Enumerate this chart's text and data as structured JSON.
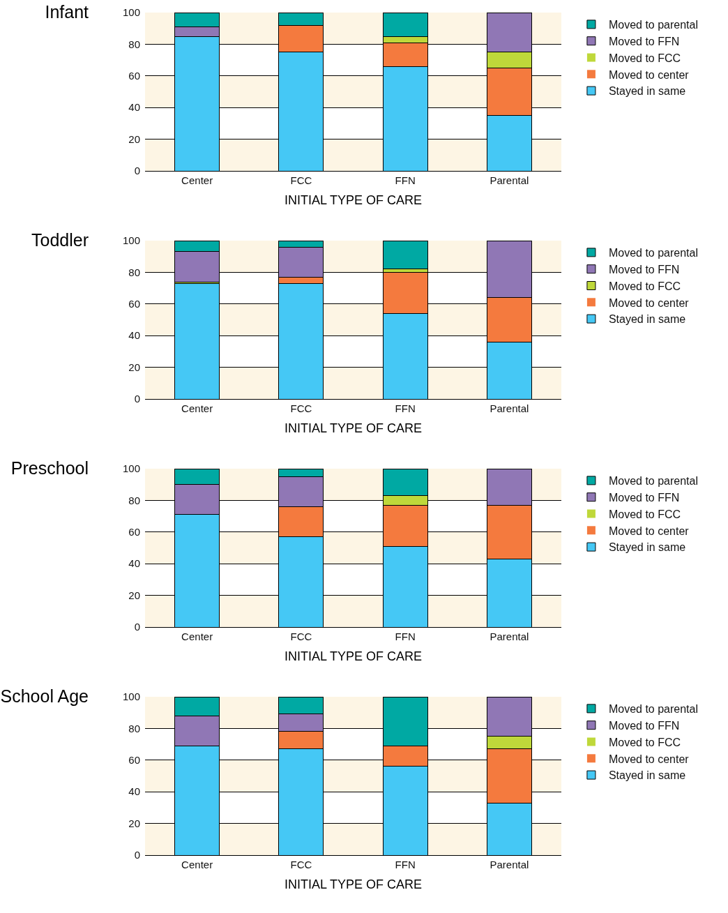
{
  "chart_data": [
    {
      "type": "bar",
      "title": "Infant",
      "xlabel": "INITIAL TYPE OF CARE",
      "categories": [
        "Center",
        "FCC",
        "FFN",
        "Parental"
      ],
      "stacked": true,
      "ylim": [
        0,
        100
      ],
      "yticks": [
        0,
        20,
        40,
        60,
        80,
        100
      ],
      "grid": "y",
      "legend": "right",
      "series": [
        {
          "name": "Stayed in same",
          "color": "#45c8f5",
          "values": [
            85,
            75,
            66,
            35
          ]
        },
        {
          "name": "Moved to center",
          "color": "#f47a3e",
          "values": [
            0,
            17,
            15,
            30
          ]
        },
        {
          "name": "Moved to FCC",
          "color": "#bfd83a",
          "values": [
            0,
            0,
            4,
            10
          ]
        },
        {
          "name": "Moved to FFN",
          "color": "#9077b5",
          "values": [
            6,
            0,
            0,
            25
          ]
        },
        {
          "name": "Moved to parental",
          "color": "#00a9a3",
          "values": [
            9,
            8,
            15,
            0
          ]
        }
      ]
    },
    {
      "type": "bar",
      "title": "Toddler",
      "xlabel": "INITIAL TYPE OF CARE",
      "categories": [
        "Center",
        "FCC",
        "FFN",
        "Parental"
      ],
      "stacked": true,
      "ylim": [
        0,
        100
      ],
      "yticks": [
        0,
        20,
        40,
        60,
        80,
        100
      ],
      "grid": "y",
      "legend": "right",
      "series": [
        {
          "name": "Stayed in same",
          "color": "#45c8f5",
          "values": [
            73,
            73,
            54,
            36
          ]
        },
        {
          "name": "Moved to center",
          "color": "#f47a3e",
          "values": [
            0,
            4,
            26,
            28
          ]
        },
        {
          "name": "Moved to FCC",
          "color": "#bfd83a",
          "values": [
            1,
            0,
            2,
            0
          ]
        },
        {
          "name": "Moved to FFN",
          "color": "#9077b5",
          "values": [
            19,
            19,
            0,
            36
          ]
        },
        {
          "name": "Moved to parental",
          "color": "#00a9a3",
          "values": [
            7,
            4,
            18,
            0
          ]
        }
      ]
    },
    {
      "type": "bar",
      "title": "Preschool",
      "xlabel": "INITIAL TYPE OF CARE",
      "categories": [
        "Center",
        "FCC",
        "FFN",
        "Parental"
      ],
      "stacked": true,
      "ylim": [
        0,
        100
      ],
      "yticks": [
        0,
        20,
        40,
        60,
        80,
        100
      ],
      "grid": "y",
      "legend": "right",
      "series": [
        {
          "name": "Stayed in same",
          "color": "#45c8f5",
          "values": [
            71,
            57,
            51,
            43
          ]
        },
        {
          "name": "Moved to center",
          "color": "#f47a3e",
          "values": [
            0,
            19,
            26,
            34
          ]
        },
        {
          "name": "Moved to FCC",
          "color": "#bfd83a",
          "values": [
            0,
            0,
            6,
            0
          ]
        },
        {
          "name": "Moved to FFN",
          "color": "#9077b5",
          "values": [
            19,
            19,
            0,
            23
          ]
        },
        {
          "name": "Moved to parental",
          "color": "#00a9a3",
          "values": [
            10,
            5,
            17,
            0
          ]
        }
      ]
    },
    {
      "type": "bar",
      "title": "School Age",
      "xlabel": "INITIAL TYPE OF CARE",
      "categories": [
        "Center",
        "FCC",
        "FFN",
        "Parental"
      ],
      "stacked": true,
      "ylim": [
        0,
        100
      ],
      "yticks": [
        0,
        20,
        40,
        60,
        80,
        100
      ],
      "grid": "y",
      "legend": "right",
      "series": [
        {
          "name": "Stayed in same",
          "color": "#45c8f5",
          "values": [
            69,
            67,
            56,
            33
          ]
        },
        {
          "name": "Moved to center",
          "color": "#f47a3e",
          "values": [
            0,
            11,
            13,
            34
          ]
        },
        {
          "name": "Moved to FCC",
          "color": "#bfd83a",
          "values": [
            0,
            0,
            0,
            8
          ]
        },
        {
          "name": "Moved to FFN",
          "color": "#9077b5",
          "values": [
            19,
            11,
            0,
            25
          ]
        },
        {
          "name": "Moved to parental",
          "color": "#00a9a3",
          "values": [
            12,
            11,
            31,
            0
          ]
        }
      ]
    }
  ]
}
